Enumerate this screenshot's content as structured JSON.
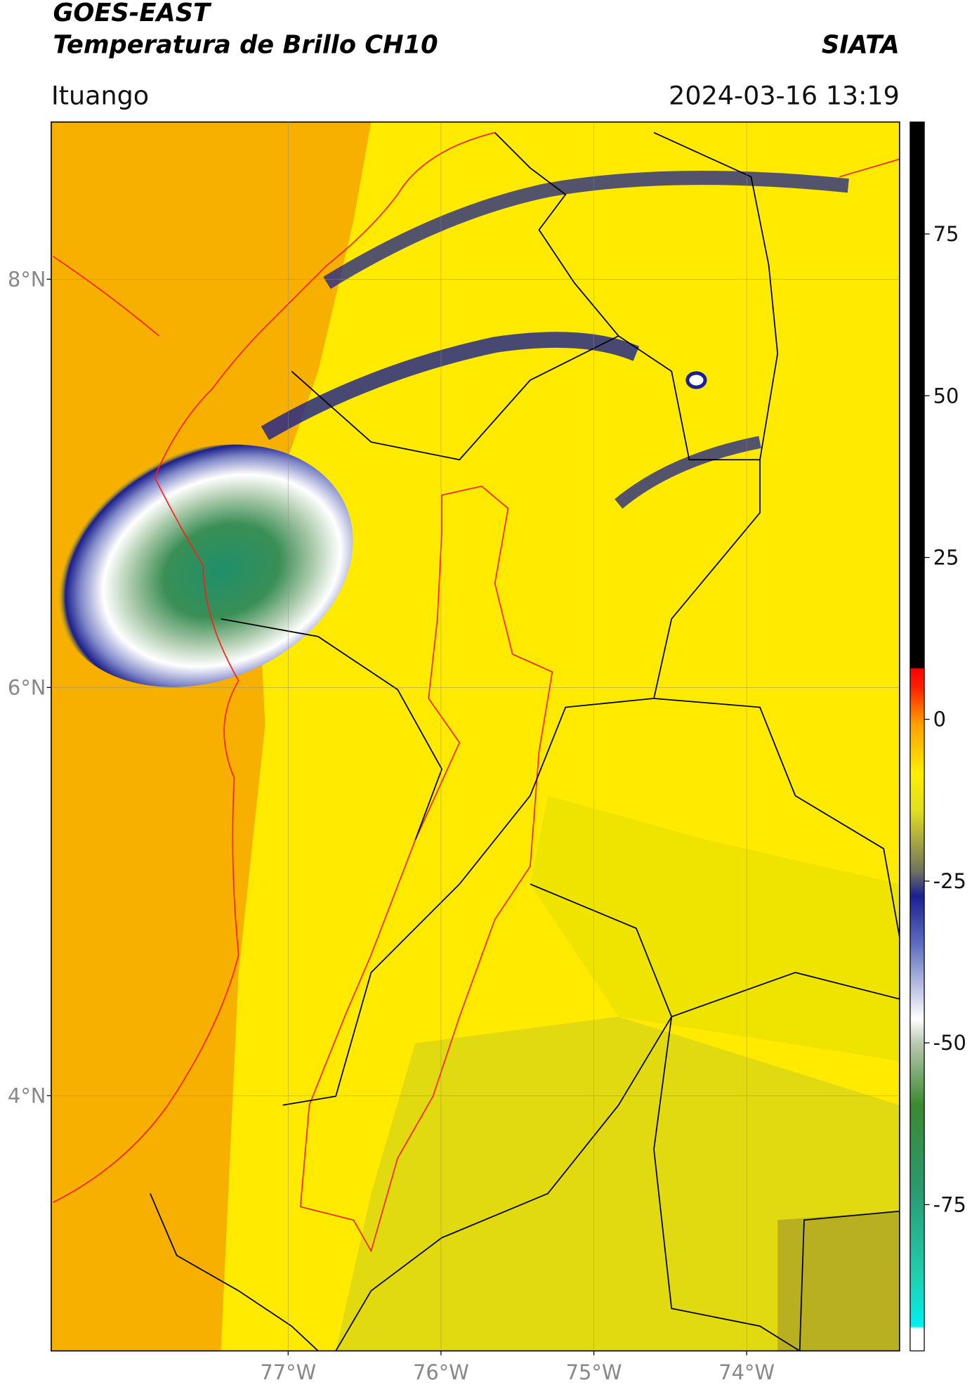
{
  "header": {
    "title": "GOES-EAST",
    "subtitle": "Temperatura de Brillo CH10",
    "source": "SIATA",
    "location": "Ituango",
    "datetime": "2024-03-16 13:19"
  },
  "map": {
    "lonlim": [
      -78.55,
      -73.0
    ],
    "latlim": [
      2.75,
      8.77
    ],
    "xticks": [
      {
        "value": -77,
        "label": "77°W"
      },
      {
        "value": -76,
        "label": "76°W"
      },
      {
        "value": -75,
        "label": "75°W"
      },
      {
        "value": -74,
        "label": "74°W"
      }
    ],
    "yticks": [
      {
        "value": 8,
        "label": "8°N"
      },
      {
        "value": 6,
        "label": "6°N"
      },
      {
        "value": 4,
        "label": "4°N"
      }
    ],
    "grid": true
  },
  "colorbar": {
    "ylim": [
      -97.6,
      92.3
    ],
    "yticks": [
      75,
      50,
      25,
      0,
      -25,
      -50,
      -75
    ]
  }
}
